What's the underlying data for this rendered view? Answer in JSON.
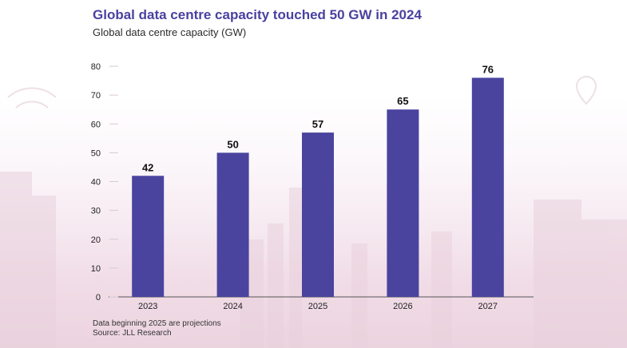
{
  "title": "Global data centre capacity touched 50 GW in 2024",
  "subtitle": "Global data centre capacity (GW)",
  "footnote": "Data beginning 2025 are projections",
  "source": "Source: JLL Research",
  "colors": {
    "title": "#4a41a0",
    "bar": "#4a449f",
    "axis": "#222222"
  },
  "chart_data": {
    "type": "bar",
    "title": "Global data centre capacity touched 50 GW in 2024",
    "subtitle": "Global data centre capacity (GW)",
    "categories": [
      "2023",
      "2024",
      "2025",
      "2026",
      "2027"
    ],
    "values": [
      42,
      50,
      57,
      65,
      76
    ],
    "data_labels": [
      "42",
      "50",
      "57",
      "65",
      "76"
    ],
    "ylim": [
      0,
      80
    ],
    "yticks": [
      0,
      10,
      20,
      30,
      40,
      50,
      60,
      70,
      80
    ],
    "grid": false,
    "legend": "none"
  }
}
